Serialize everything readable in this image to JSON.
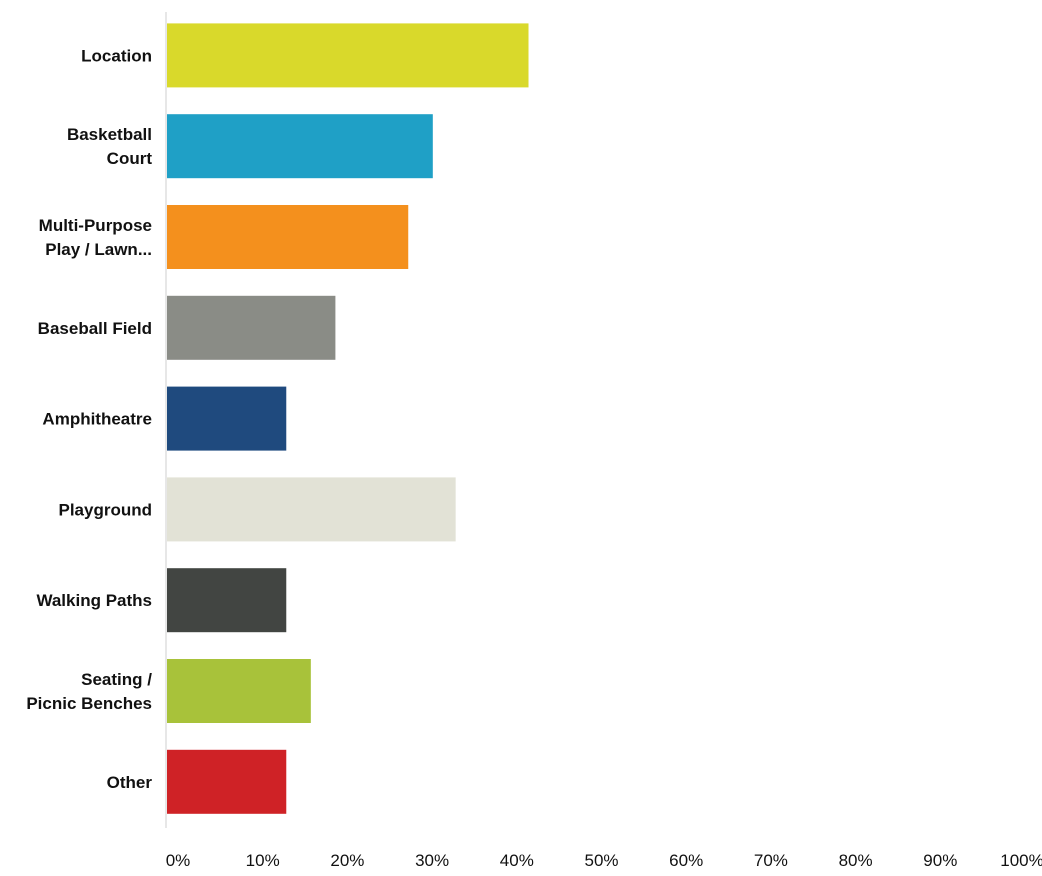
{
  "chart_data": {
    "type": "bar",
    "orientation": "horizontal",
    "categories": [
      [
        "Location"
      ],
      [
        "Basketball",
        "Court"
      ],
      [
        "Multi-Purpose",
        "Play / Lawn..."
      ],
      [
        "Baseball Field"
      ],
      [
        "Amphitheatre"
      ],
      [
        "Playground"
      ],
      [
        "Walking Paths"
      ],
      [
        "Seating /",
        "Picnic Benches"
      ],
      [
        "Other"
      ]
    ],
    "values": [
      42.8,
      31.5,
      28.6,
      20.0,
      14.2,
      34.2,
      14.2,
      17.1,
      14.2
    ],
    "colors": [
      "#d9d92b",
      "#1fa0c6",
      "#f4901d",
      "#8a8c86",
      "#1f4a7e",
      "#e2e2d6",
      "#424542",
      "#a8c23a",
      "#cf2226"
    ],
    "xlim": [
      0,
      100
    ],
    "x_ticks": [
      "0%",
      "10%",
      "20%",
      "30%",
      "40%",
      "50%",
      "60%",
      "70%",
      "80%",
      "90%",
      "100%"
    ],
    "title": "",
    "xlabel": "",
    "ylabel": "",
    "grid": false,
    "legend": false
  }
}
